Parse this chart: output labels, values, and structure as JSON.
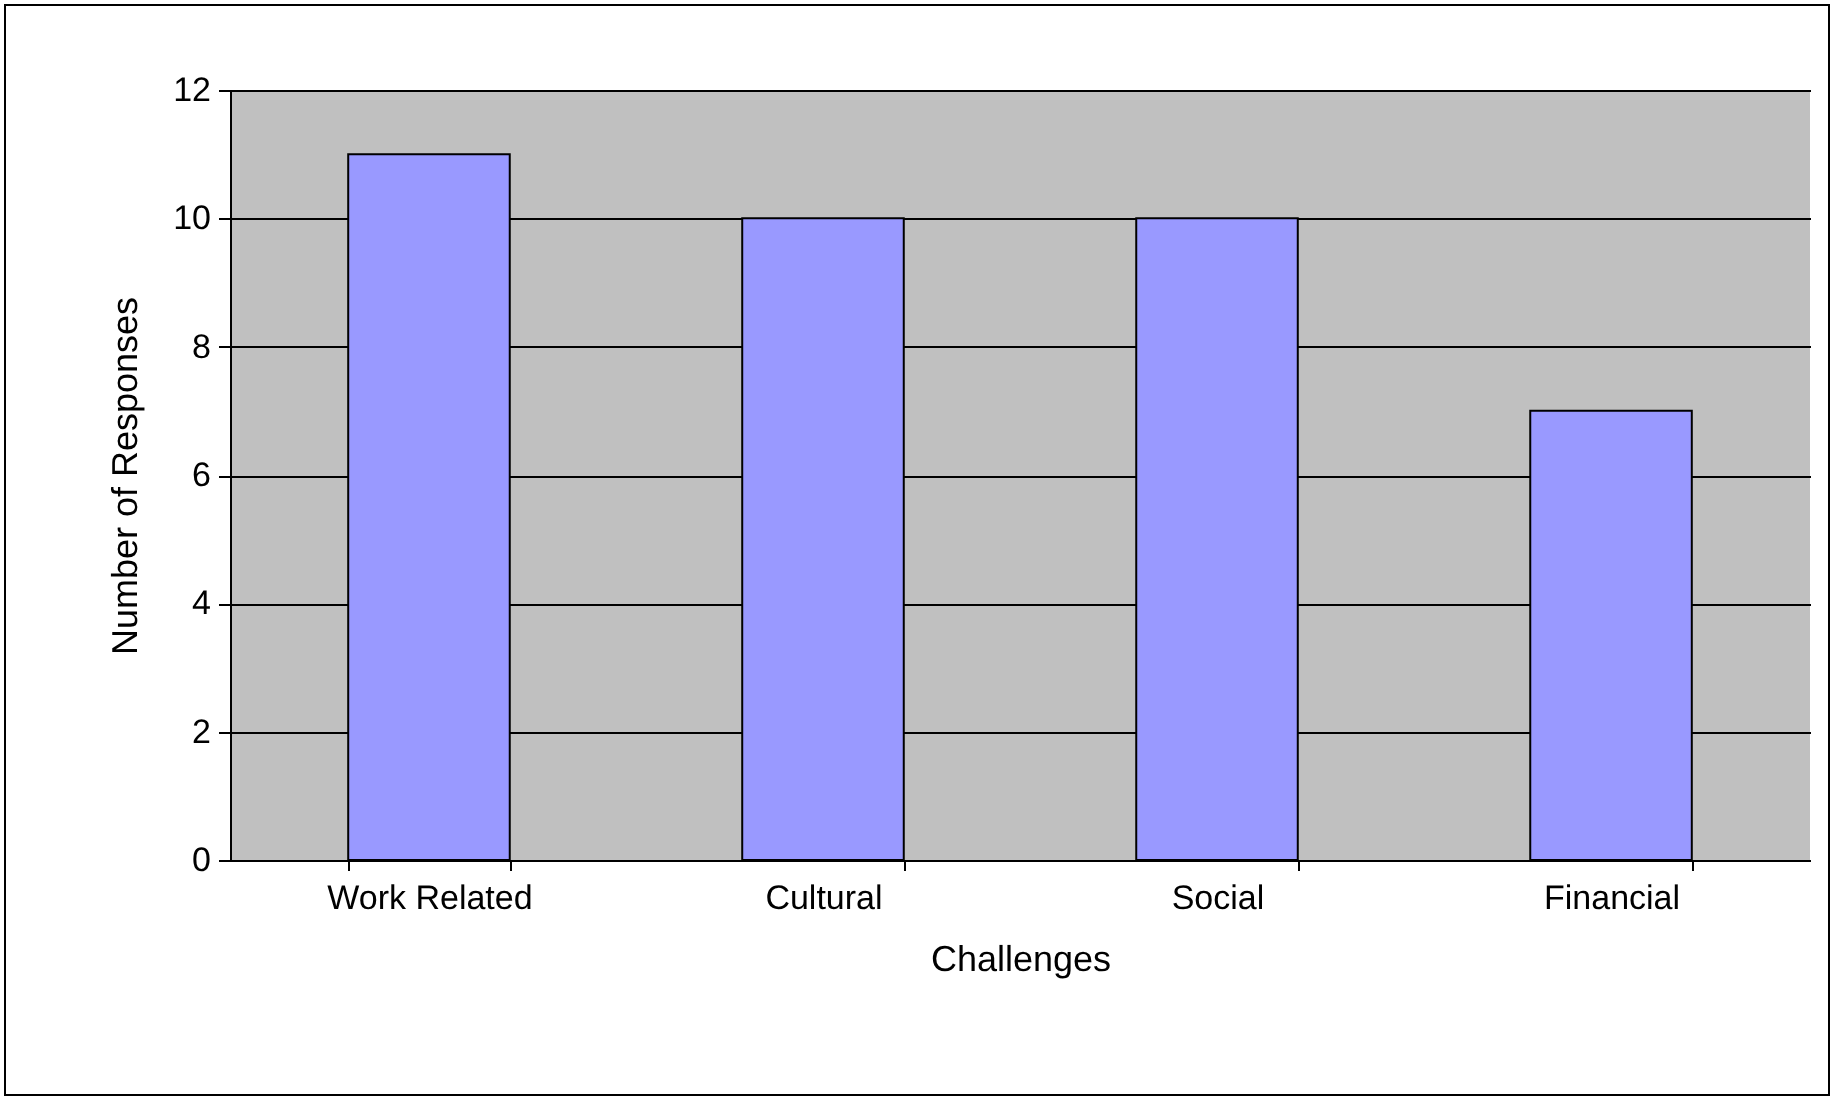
{
  "chart_data": {
    "type": "bar",
    "xlabel": "Challenges",
    "ylabel": "Number of Responses",
    "categories": [
      "Work Related",
      "Cultural",
      "Social",
      "Financial"
    ],
    "values": [
      11,
      10,
      10,
      7
    ],
    "color": "#9999ff",
    "ylim": [
      0,
      12
    ],
    "yticks": [
      0,
      2,
      4,
      6,
      8,
      10,
      12
    ],
    "grid": "y"
  }
}
